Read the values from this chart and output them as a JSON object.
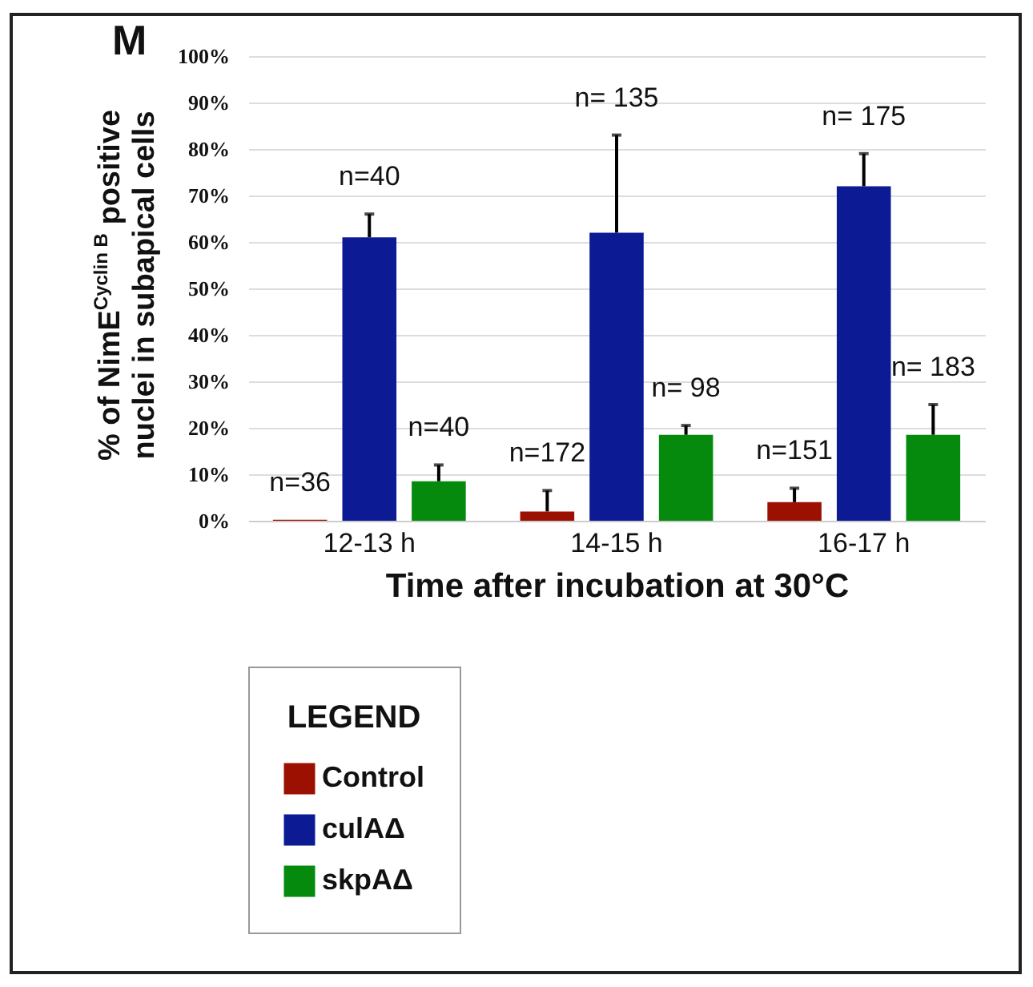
{
  "chart_data": {
    "type": "bar",
    "title": "M",
    "xlabel": "Time after incubation at 30°C",
    "ylabel": "% of NimE$^{Cyclin B}$ positive nuclei in subapical cells",
    "legend_title": "LEGEND",
    "categories": [
      "12-13 h",
      "14-15 h",
      "16-17 h"
    ],
    "series": [
      {
        "name": "Control",
        "color": "#9b1000",
        "values": [
          0.2,
          2,
          4
        ],
        "errors": [
          null,
          [
            2,
            6.5
          ],
          [
            4,
            7
          ]
        ]
      },
      {
        "name": "culAΔ",
        "color": "#0c1a94",
        "values": [
          61,
          62,
          72
        ],
        "errors": [
          [
            61,
            66
          ],
          [
            62,
            83
          ],
          [
            72,
            79
          ]
        ]
      },
      {
        "name": "skpAΔ",
        "color": "#058a0e",
        "values": [
          8.5,
          18.5,
          18.5
        ],
        "errors": [
          [
            8.5,
            12
          ],
          [
            18.5,
            20.5
          ],
          [
            18.5,
            25
          ]
        ]
      }
    ],
    "annotations": [
      "n=36",
      "n=172",
      "n=151",
      "n=40",
      "n= 135",
      "n= 175",
      "n=40",
      "n= 98",
      "n= 183"
    ],
    "ylim": [
      0,
      100
    ],
    "yticks": [
      {
        "value": 0,
        "label": "0%"
      },
      {
        "value": 10,
        "label": "10%"
      },
      {
        "value": 20,
        "label": "20%"
      },
      {
        "value": 30,
        "label": "30%"
      },
      {
        "value": 40,
        "label": "40%"
      },
      {
        "value": 50,
        "label": "50%"
      },
      {
        "value": 60,
        "label": "60%"
      },
      {
        "value": 70,
        "label": "70%"
      },
      {
        "value": 80,
        "label": "80%"
      },
      {
        "value": 90,
        "label": "90%"
      },
      {
        "value": 100,
        "label": "100%"
      }
    ],
    "grid": "y",
    "legend": "bottom"
  }
}
